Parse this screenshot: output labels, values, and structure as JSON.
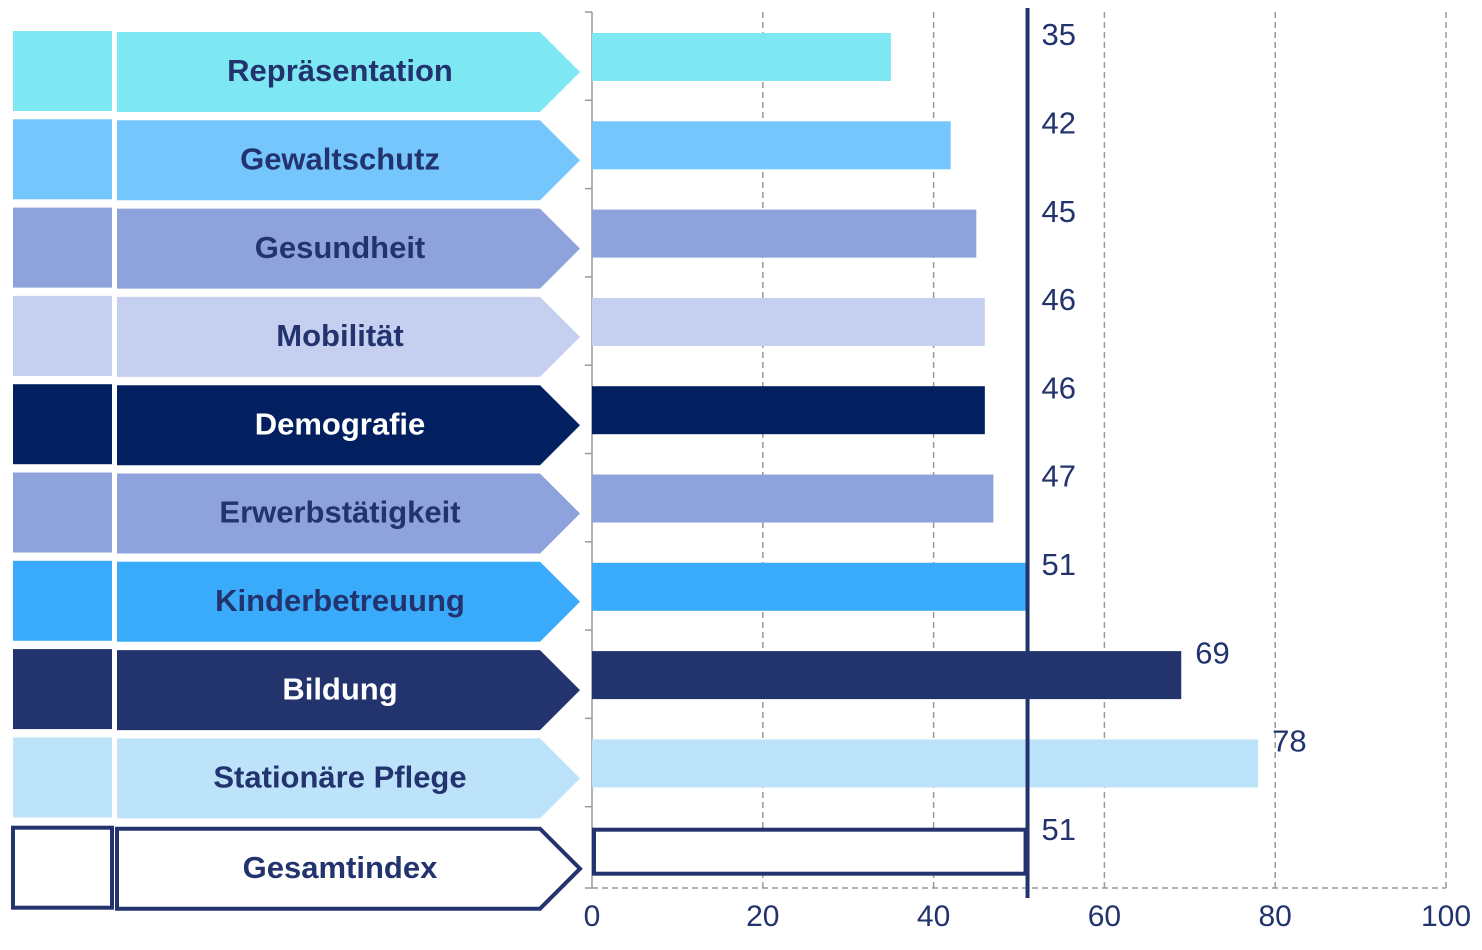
{
  "chart_data": {
    "type": "bar",
    "orientation": "horizontal",
    "categories": [
      "Repräsentation",
      "Gewaltschutz",
      "Gesundheit",
      "Mobilität",
      "Demografie",
      "Erwerbstätigkeit",
      "Kinderbetreuung",
      "Bildung",
      "Stationäre Pflege",
      "Gesamtindex"
    ],
    "values": [
      35,
      42,
      45,
      46,
      46,
      47,
      51,
      69,
      78,
      51
    ],
    "colors": [
      "#7ee8f2",
      "#75c6fd",
      "#8ea3dc",
      "#c5cff0",
      "#022060",
      "#8ea3dc",
      "#3aabfb",
      "#22336e",
      "#bde3fb",
      "#ffffff"
    ],
    "line_color": "#22336e",
    "xlim": [
      0,
      100
    ],
    "xticks": [
      0,
      20,
      40,
      60,
      80,
      100
    ],
    "grid": true
  }
}
